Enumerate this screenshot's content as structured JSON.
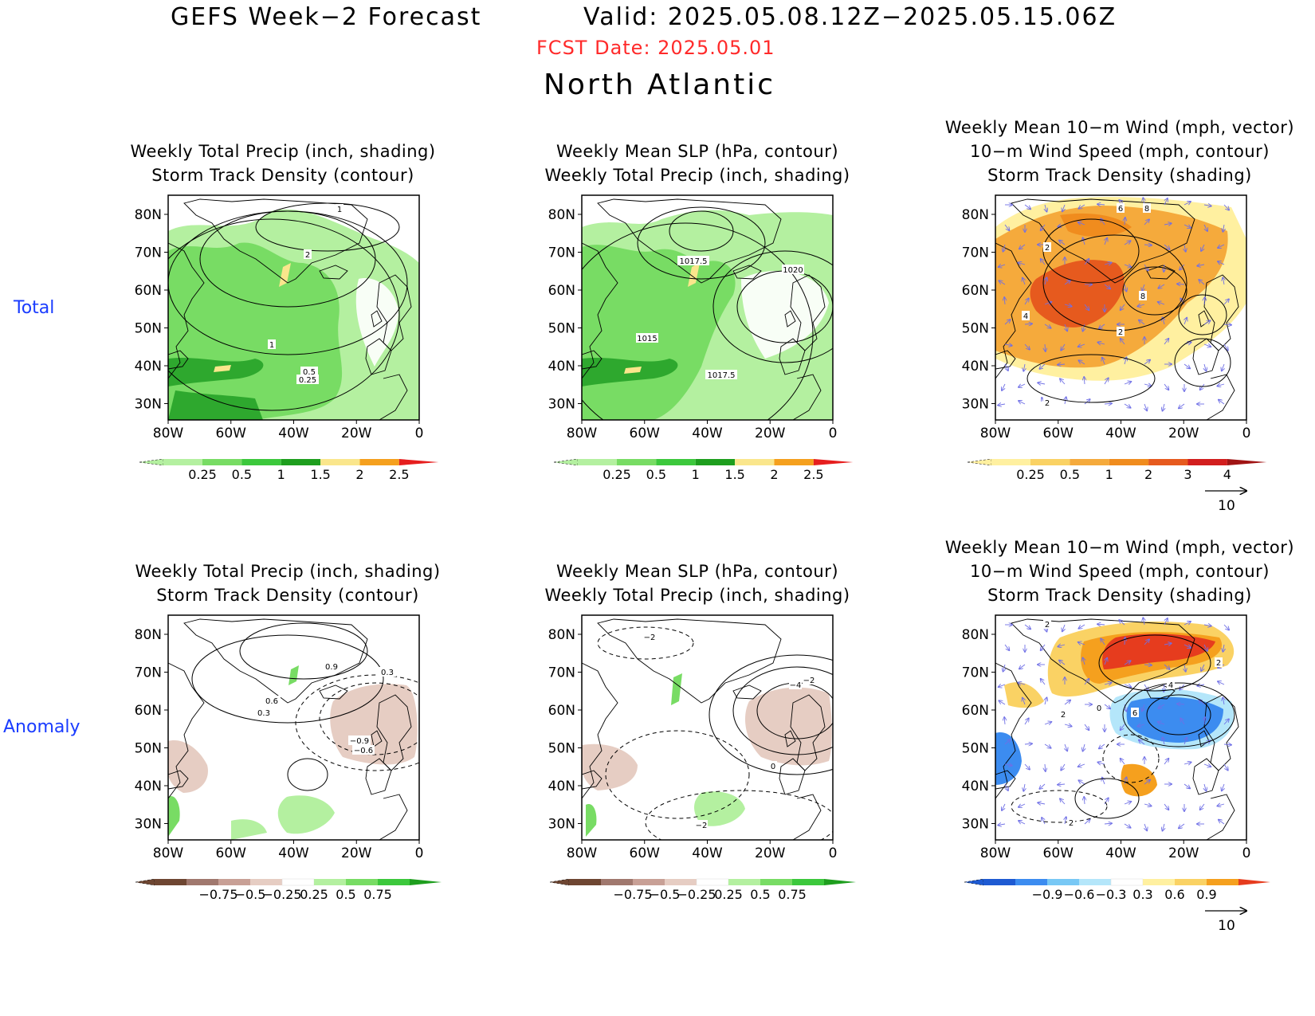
{
  "header": {
    "title_left": "GEFS Week−2 Forecast",
    "title_right": "Valid: 2025.05.08.12Z−2025.05.15.06Z",
    "fcst_date": "FCST Date: 2025.05.01",
    "region": "North Atlantic"
  },
  "rows": {
    "total": "Total",
    "anomaly": "Anomaly"
  },
  "axes": {
    "lat_labels": [
      "80N",
      "70N",
      "60N",
      "50N",
      "40N",
      "30N"
    ],
    "lon_labels": [
      "80W",
      "60W",
      "40W",
      "20W",
      "0"
    ]
  },
  "panels": {
    "total_precip": {
      "title": "Weekly Total Precip (inch, shading)\nStorm Track Density (contour)"
    },
    "total_slp": {
      "title": "Weekly Mean SLP (hPa, contour)\nWeekly Total Precip (inch, shading)"
    },
    "total_wind": {
      "title": "Weekly Mean 10−m Wind (mph, vector)\n10−m Wind Speed (mph, contour)\nStorm Track Density (shading)"
    },
    "anom_precip": {
      "title": "Weekly Total Precip (inch, shading)\nStorm Track Density (contour)"
    },
    "anom_slp": {
      "title": "Weekly Mean SLP (hPa, contour)\nWeekly Total Precip (inch, shading)"
    },
    "anom_wind": {
      "title": "Weekly Mean 10−m Wind (mph, vector)\n10−m Wind Speed (mph, contour)\nStorm Track Density (shading)"
    }
  },
  "contour_labels": {
    "total_precip": [
      "1",
      "2",
      "1",
      "0.5",
      "0.25"
    ],
    "total_slp": [
      "1017.5",
      "1020",
      "1015",
      "1017.5"
    ],
    "total_wind": [
      "6",
      "8",
      "2",
      "4",
      "8",
      "2",
      "2"
    ],
    "anom_precip": [
      "0.9",
      "0.3",
      "0.6",
      "0.3",
      "−0.9",
      "−0.6"
    ],
    "anom_slp": [
      "−2",
      "−2",
      "−4",
      "0",
      "−2"
    ],
    "anom_wind": [
      "2",
      "2",
      "4",
      "6",
      "2",
      "0",
      "2"
    ]
  },
  "colorbars": {
    "total_precip": {
      "labels": [
        "0.25",
        "0.5",
        "1",
        "1.5",
        "2",
        "2.5"
      ],
      "colors": [
        "#b4f0a0",
        "#78dc64",
        "#3cc83c",
        "#1e9e1e",
        "#fae68c",
        "#f5a01e",
        "#e61e1e"
      ]
    },
    "total_wind": {
      "labels": [
        "0.25",
        "0.5",
        "1",
        "2",
        "3",
        "4"
      ],
      "colors": [
        "#fff0a0",
        "#fad264",
        "#f5aa3c",
        "#f08c1e",
        "#e65a1e",
        "#d21e1e",
        "#a01414"
      ]
    },
    "anom_precip": {
      "labels": [
        "−0.75",
        "−0.5",
        "−0.25",
        "0.25",
        "0.5",
        "0.75"
      ],
      "colors": [
        "#6e4632",
        "#a0786e",
        "#c8a096",
        "#e6cdc3",
        "#ffffff",
        "#b4f0a0",
        "#78dc64",
        "#3cc83c",
        "#1e9e1e"
      ]
    },
    "anom_wind": {
      "labels": [
        "−0.9",
        "−0.6",
        "−0.3",
        "0.3",
        "0.6",
        "0.9"
      ],
      "colors": [
        "#1e5ad2",
        "#3c8cf0",
        "#78c8f5",
        "#b4e6fa",
        "#ffffff",
        "#fff0a0",
        "#fad264",
        "#f5a01e",
        "#e63c1e"
      ]
    }
  },
  "vector_ref": {
    "label": "10"
  },
  "colors": {
    "fcst": "#ff2a2a",
    "row_label": "#1a3cff",
    "vector": "#6f6fe6"
  }
}
